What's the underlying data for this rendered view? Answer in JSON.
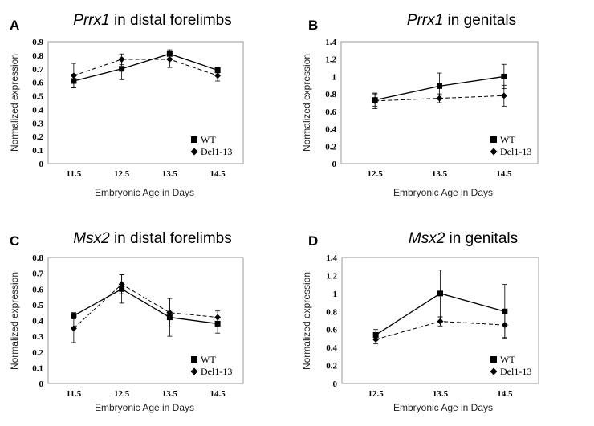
{
  "legend": {
    "wt": "WT",
    "del": "Del1-13"
  },
  "xlabel": "Embryonic Age in Days",
  "ylabel": "Normalized expression",
  "chart_data": [
    {
      "type": "line",
      "panel": "A",
      "title_gene": "Prrx1",
      "title_rest": " in distal forelimbs",
      "xlabel": "Embryonic Age in Days",
      "ylabel": "Normalized expression",
      "categories": [
        "11.5",
        "12.5",
        "13.5",
        "14.5"
      ],
      "ylim": [
        0,
        0.9
      ],
      "yticks": [
        "0",
        "0.1",
        "0.2",
        "0.3",
        "0.4",
        "0.5",
        "0.6",
        "0.7",
        "0.8",
        "0.9"
      ],
      "series": [
        {
          "name": "WT",
          "values": [
            0.61,
            0.7,
            0.81,
            0.69
          ],
          "errors": [
            0.05,
            0.08,
            0.03,
            0.02
          ]
        },
        {
          "name": "Del1-13",
          "values": [
            0.65,
            0.77,
            0.77,
            0.65
          ],
          "errors": [
            0.09,
            0.04,
            0.06,
            0.04
          ]
        }
      ]
    },
    {
      "type": "line",
      "panel": "B",
      "title_gene": "Prrx1",
      "title_rest": " in genitals",
      "xlabel": "Embryonic Age in Days",
      "ylabel": "Normalized expression",
      "categories": [
        "12.5",
        "13.5",
        "14.5"
      ],
      "ylim": [
        0,
        1.4
      ],
      "yticks": [
        "0",
        "0.2",
        "0.4",
        "0.6",
        "0.8",
        "1",
        "1.2",
        "1.4"
      ],
      "series": [
        {
          "name": "WT",
          "values": [
            0.73,
            0.89,
            1.0
          ],
          "errors": [
            0.07,
            0.15,
            0.14
          ]
        },
        {
          "name": "Del1-13",
          "values": [
            0.72,
            0.75,
            0.78
          ],
          "errors": [
            0.09,
            0.05,
            0.12
          ]
        }
      ]
    },
    {
      "type": "line",
      "panel": "C",
      "title_gene": "Msx2",
      "title_rest": " in distal forelimbs",
      "xlabel": "Embryonic Age in Days",
      "ylabel": "Normalized expression",
      "categories": [
        "11.5",
        "12.5",
        "13.5",
        "14.5"
      ],
      "ylim": [
        0,
        0.8
      ],
      "yticks": [
        "0",
        "0.1",
        "0.2",
        "0.3",
        "0.4",
        "0.5",
        "0.6",
        "0.7",
        "0.8"
      ],
      "series": [
        {
          "name": "WT",
          "values": [
            0.43,
            0.6,
            0.42,
            0.38
          ],
          "errors": [
            0.02,
            0.09,
            0.12,
            0.06
          ]
        },
        {
          "name": "Del1-13",
          "values": [
            0.35,
            0.63,
            0.45,
            0.42
          ],
          "errors": [
            0.09,
            0.06,
            0.09,
            0.04
          ]
        }
      ]
    },
    {
      "type": "line",
      "panel": "D",
      "title_gene": "Msx2",
      "title_rest": " in genitals",
      "xlabel": "Embryonic Age in Days",
      "ylabel": "Normalized expression",
      "categories": [
        "12.5",
        "13.5",
        "14.5"
      ],
      "ylim": [
        0,
        1.4
      ],
      "yticks": [
        "0",
        "0.2",
        "0.4",
        "0.6",
        "0.8",
        "1",
        "1.2",
        "1.4"
      ],
      "series": [
        {
          "name": "WT",
          "values": [
            0.54,
            1.0,
            0.8
          ],
          "errors": [
            0.06,
            0.26,
            0.3
          ]
        },
        {
          "name": "Del1-13",
          "values": [
            0.49,
            0.69,
            0.65
          ],
          "errors": [
            0.05,
            0.05,
            0.14
          ]
        }
      ]
    }
  ]
}
